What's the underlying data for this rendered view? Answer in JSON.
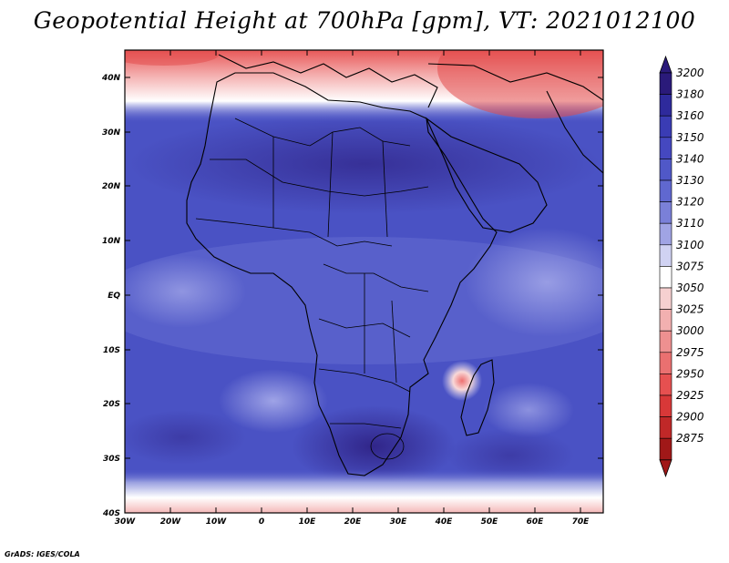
{
  "title": "Geopotential Height at 700hPa [gpm], VT: 2021012100",
  "credit": "GrADS: IGES/COLA",
  "axes": {
    "lat_labels": [
      "40N",
      "30N",
      "20N",
      "10N",
      "EQ",
      "10S",
      "20S",
      "30S",
      "40S"
    ],
    "lon_labels": [
      "30W",
      "20W",
      "10W",
      "0",
      "10E",
      "20E",
      "30E",
      "40E",
      "50E",
      "60E",
      "70E"
    ]
  },
  "colorbar": {
    "levels": [
      "3200",
      "3180",
      "3160",
      "3150",
      "3140",
      "3130",
      "3120",
      "3110",
      "3100",
      "3075",
      "3050",
      "3025",
      "3000",
      "2975",
      "2950",
      "2925",
      "2900",
      "2875"
    ],
    "colors": [
      "#2a1a7a",
      "#2e2a9c",
      "#3a3cb4",
      "#4548c0",
      "#5058c8",
      "#6068d0",
      "#7a80d8",
      "#a0a4e4",
      "#d0d2f2",
      "#ffffff",
      "#f6d0d0",
      "#f2b0b0",
      "#ee9090",
      "#ea7070",
      "#e65050",
      "#d83838",
      "#c02828",
      "#a01818"
    ]
  }
}
